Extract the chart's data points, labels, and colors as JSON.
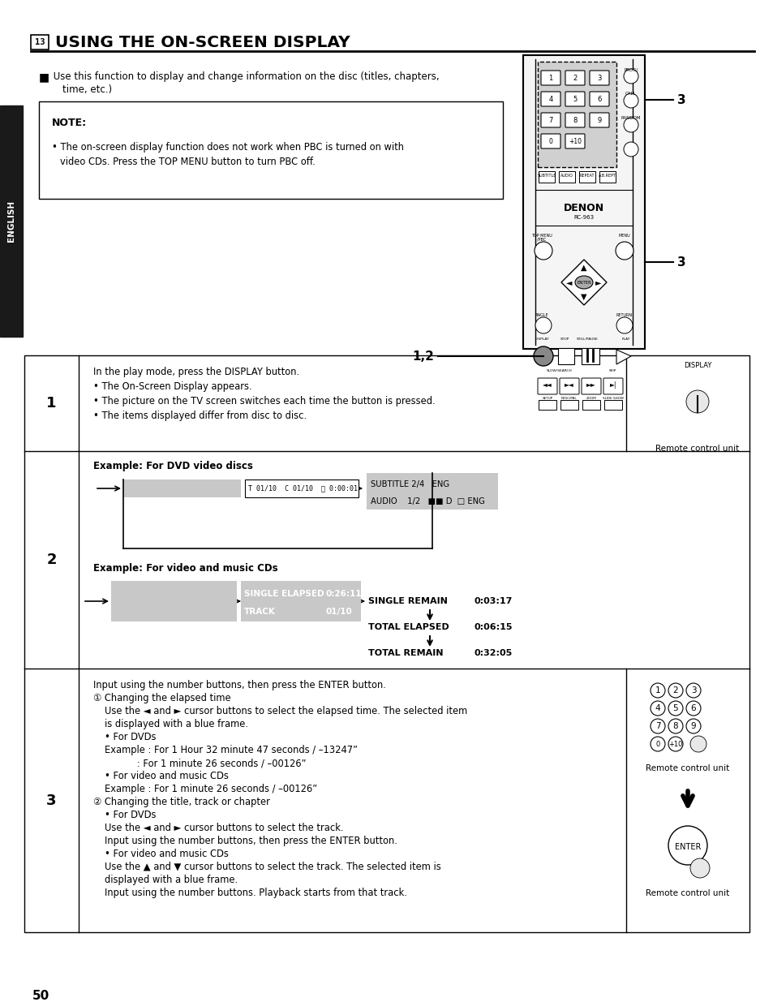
{
  "bg_color": "#ffffff",
  "title_text": "USING THE ON-SCREEN DISPLAY",
  "sidebar_color": "#1a1a1a",
  "sidebar_text": "ENGLISH",
  "section1_text": [
    "In the play mode, press the DISPLAY button.",
    "• The On-Screen Display appears.",
    "• The picture on the TV screen switches each time the button is pressed.",
    "• The items displayed differ from disc to disc."
  ],
  "section1_right": "Remote control unit",
  "section2_example1_title": "Example: For DVD video discs",
  "section2_example2_title": "Example: For video and music CDs",
  "note_title": "NOTE:",
  "note_text1": "The on-screen display function does not work when PBC is turned on with",
  "note_text2": "video CDs. Press the TOP MENU button to turn PBC off.",
  "intro_bullet": "■",
  "intro_text": " Use this function to display and change information on the disc (titles, chapters,",
  "intro_text2": "    time, etc.)",
  "s3_para1": "Input using the number buttons, then press the ENTER button.",
  "s3_para2": "① Changing the elapsed time",
  "s3_para3a": "Use the ◄ and ► cursor buttons to select the elapsed time. The selected item",
  "s3_para3b": "is displayed with a blue frame.",
  "s3_para4": "• For DVDs",
  "s3_para5": "Example : For 1 Hour 32 minute 47 seconds / –13247”",
  "s3_para6": "           : For 1 minute 26 seconds / –00126”",
  "s3_para7": "• For video and music CDs",
  "s3_para8": "Example : For 1 minute 26 seconds / –00126”",
  "s3_para9": "② Changing the title, track or chapter",
  "s3_para10": "• For DVDs",
  "s3_para11": "Use the ◄ and ► cursor buttons to select the track.",
  "s3_para12": "Input using the number buttons, then press the ENTER button.",
  "s3_para13": "• For video and music CDs",
  "s3_para14a": "Use the ▲ and ▼ cursor buttons to select the track. The selected item is",
  "s3_para14b": "displayed with a blue frame.",
  "s3_para15": "Input using the number buttons. Playback starts from that track.",
  "s3_right1": "Remote control unit",
  "s3_right2": "Remote control unit",
  "page_num": "50",
  "gray_color": "#c8c8c8",
  "label_3_top": "3",
  "label_3_mid": "3",
  "label_12": "1,2",
  "cd_track_label": "TRACK",
  "cd_track_val": "01/10",
  "cd_elapsed_label": "SINGLE ELAPSED",
  "cd_elapsed_val": "0:26:11",
  "cd_single_remain": "SINGLE REMAIN",
  "cd_single_remain_val": "0:03:17",
  "cd_total_elapsed": "TOTAL ELAPSED",
  "cd_total_elapsed_val": "0:06:15",
  "cd_total_remain": "TOTAL REMAIN",
  "cd_total_remain_val": "0:32:05"
}
